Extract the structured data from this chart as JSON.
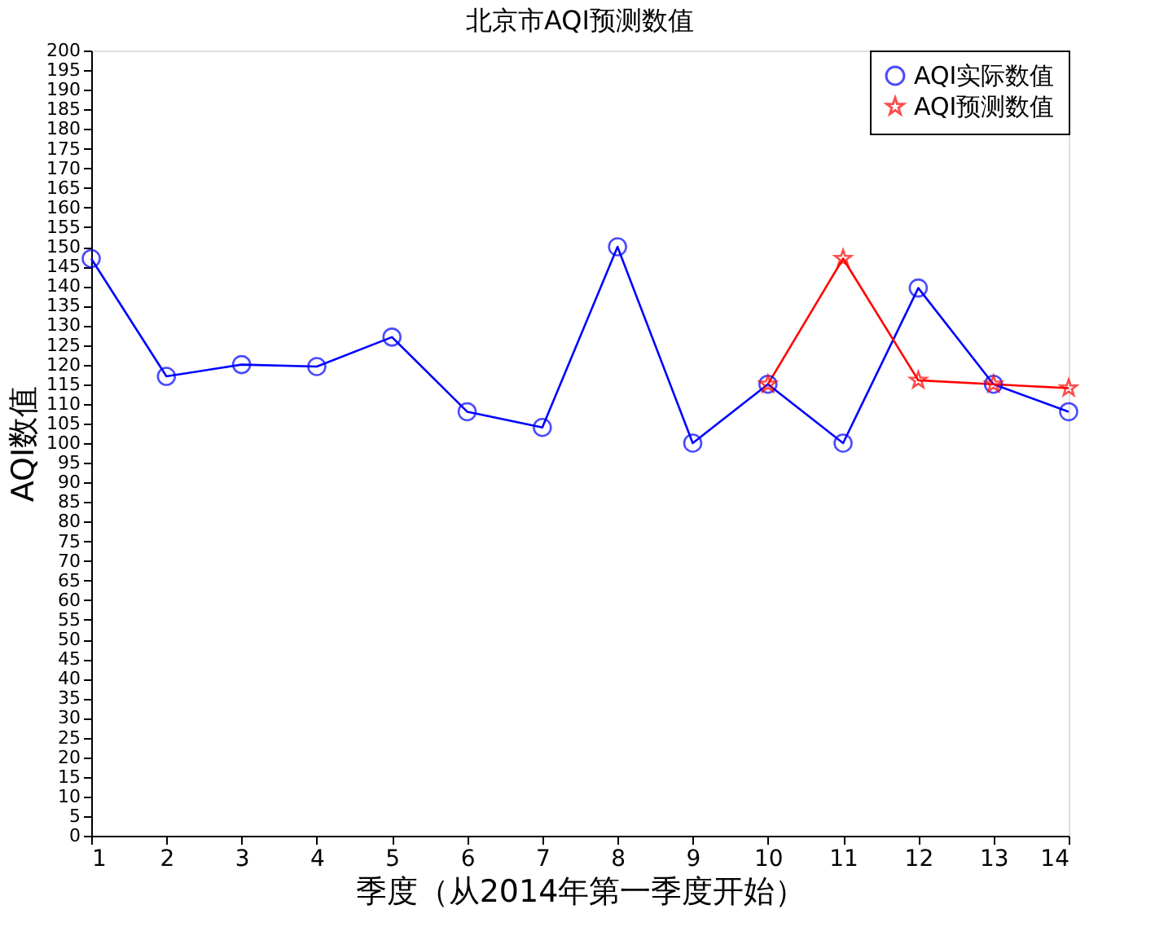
{
  "chart_data": {
    "type": "line",
    "title": "北京市AQI预测数值",
    "xlabel": "季度（从2014年第一季度开始）",
    "ylabel": "AQI数值",
    "x": [
      1,
      2,
      3,
      4,
      5,
      6,
      7,
      8,
      9,
      10,
      11,
      12,
      13,
      14
    ],
    "series": [
      {
        "name": "AQI实际数值",
        "color": "#0000ff",
        "marker": "circle",
        "values": [
          147,
          117,
          120,
          119.5,
          127,
          108,
          104,
          150,
          100,
          115,
          100,
          139.5,
          115,
          108
        ]
      },
      {
        "name": "AQI预测数值",
        "color": "#ff0000",
        "marker": "star",
        "x": [
          10,
          11,
          12,
          13,
          14
        ],
        "values": [
          115,
          147,
          116,
          115,
          114
        ]
      }
    ],
    "xlim": [
      1,
      14
    ],
    "xticks": [
      1,
      2,
      3,
      4,
      5,
      6,
      7,
      8,
      9,
      10,
      11,
      12,
      13,
      14
    ],
    "ylim": [
      0,
      200
    ],
    "yticks": [
      0,
      5,
      10,
      15,
      20,
      25,
      30,
      35,
      40,
      45,
      50,
      55,
      60,
      65,
      70,
      75,
      80,
      85,
      90,
      95,
      100,
      105,
      110,
      115,
      120,
      125,
      130,
      135,
      140,
      145,
      150,
      155,
      160,
      165,
      170,
      175,
      180,
      185,
      190,
      195,
      200
    ],
    "grid": false,
    "legend": "top right",
    "line_style": "solid"
  }
}
